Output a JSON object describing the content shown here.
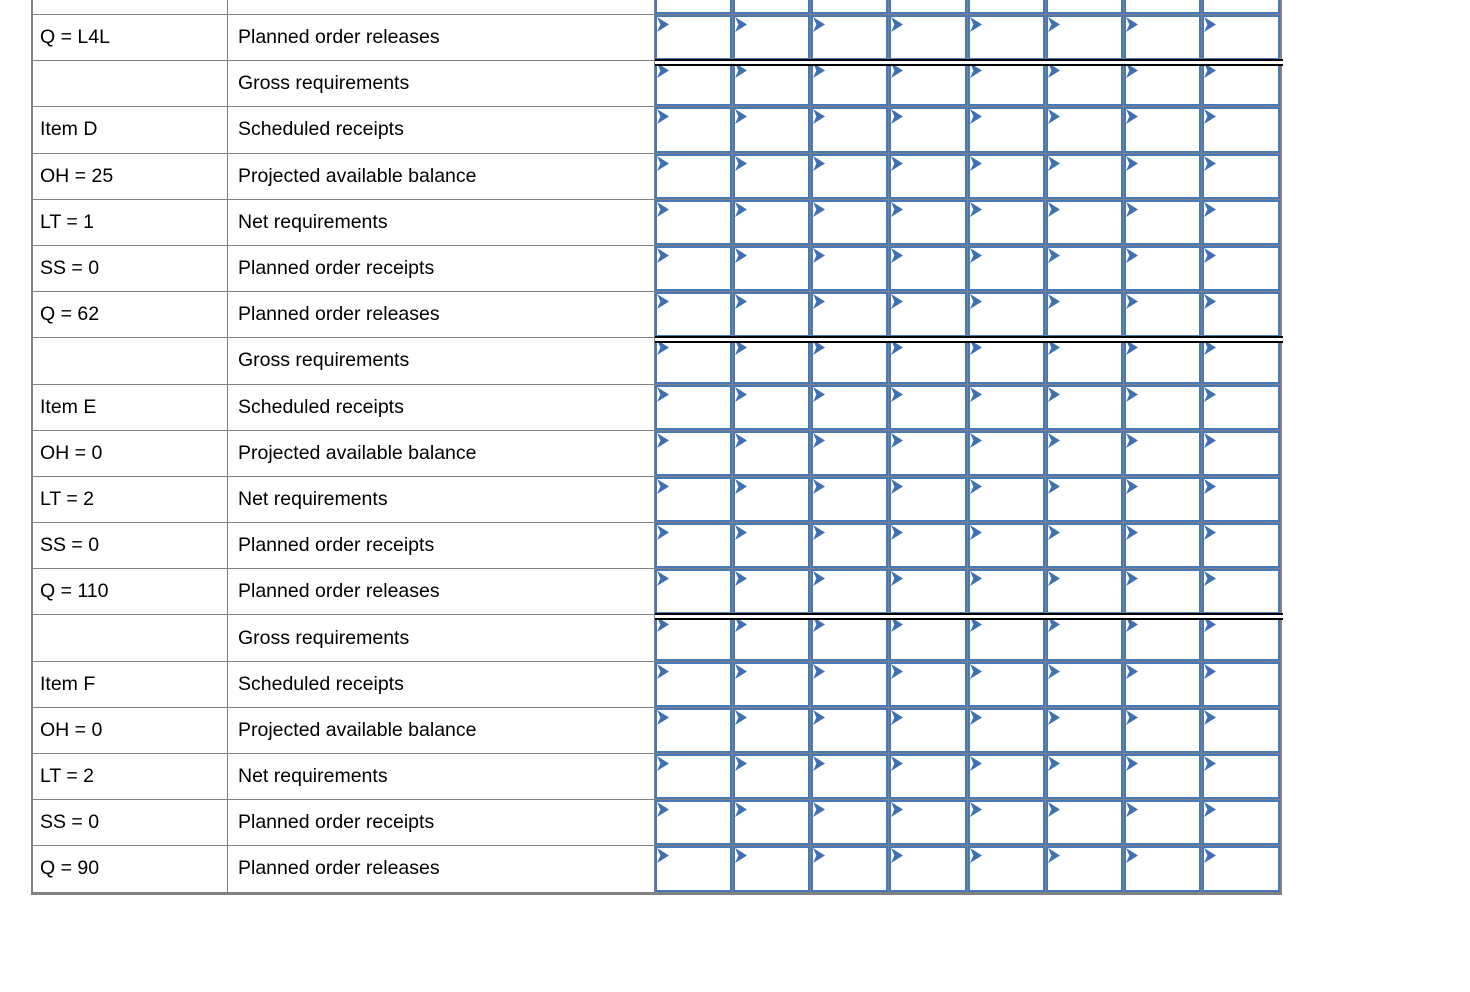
{
  "colors": {
    "cell_border_blue": "#4878b7",
    "flag_blue": "#3f70b2",
    "gridline_gray": "#818181",
    "divider_black": "#000000",
    "background": "#ffffff",
    "text": "#000000"
  },
  "icons": {
    "answer_flag": "right-pointing notched flag marker in top-left of each input cell"
  },
  "grid": {
    "num_period_columns": 8,
    "cells_are_empty_inputs": true
  },
  "lead_row": {
    "info": "Q = L4L",
    "label": "Planned order releases"
  },
  "row_label_set": [
    "Gross requirements",
    "Scheduled receipts",
    "Projected available balance",
    "Net requirements",
    "Planned order receipts",
    "Planned order releases"
  ],
  "items": [
    {
      "name": "Item D",
      "rows": [
        {
          "info": "",
          "label": "Gross requirements"
        },
        {
          "info": "Item D",
          "label": "Scheduled receipts"
        },
        {
          "info": "OH = 25",
          "label": "Projected available balance"
        },
        {
          "info": "LT = 1",
          "label": "Net requirements"
        },
        {
          "info": "SS = 0",
          "label": "Planned order receipts"
        },
        {
          "info": "Q = 62",
          "label": "Planned order releases"
        }
      ]
    },
    {
      "name": "Item E",
      "rows": [
        {
          "info": "",
          "label": "Gross requirements"
        },
        {
          "info": "Item E",
          "label": "Scheduled receipts"
        },
        {
          "info": "OH = 0",
          "label": "Projected available balance"
        },
        {
          "info": "LT = 2",
          "label": "Net requirements"
        },
        {
          "info": "SS = 0",
          "label": "Planned order receipts"
        },
        {
          "info": "Q = 110",
          "label": "Planned order releases"
        }
      ]
    },
    {
      "name": "Item F",
      "rows": [
        {
          "info": "",
          "label": "Gross requirements"
        },
        {
          "info": "Item F",
          "label": "Scheduled receipts"
        },
        {
          "info": "OH = 0",
          "label": "Projected available balance"
        },
        {
          "info": "LT = 2",
          "label": "Net requirements"
        },
        {
          "info": "SS = 0",
          "label": "Planned order receipts"
        },
        {
          "info": "Q = 90",
          "label": "Planned order releases"
        }
      ]
    }
  ]
}
